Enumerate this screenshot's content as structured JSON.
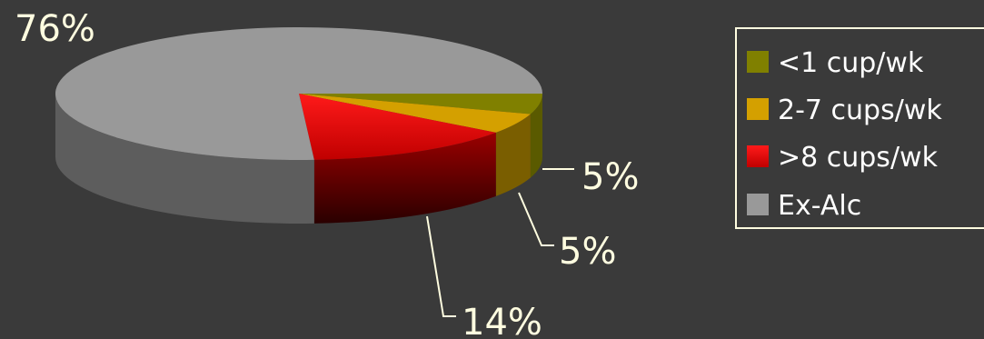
{
  "chart_data": {
    "type": "pie",
    "style": "3d",
    "slices": [
      {
        "label": "<1 cup/wk",
        "value": 5,
        "display": "5%",
        "color": "#808000"
      },
      {
        "label": "2-7 cups/wk",
        "value": 5,
        "display": "5%",
        "color": "#d4a000"
      },
      {
        "label": ">8 cups/wk",
        "value": 14,
        "display": "14%",
        "color": "#ff0000"
      },
      {
        "label": "Ex-Alc",
        "value": 76,
        "display": "76%",
        "color": "#999999"
      }
    ],
    "legend_position": "right"
  },
  "colors": {
    "background": "#3a3a3a",
    "label_text": "#fffde0",
    "legend_border": "#fffde0",
    "legend_text": "#ffffff"
  }
}
